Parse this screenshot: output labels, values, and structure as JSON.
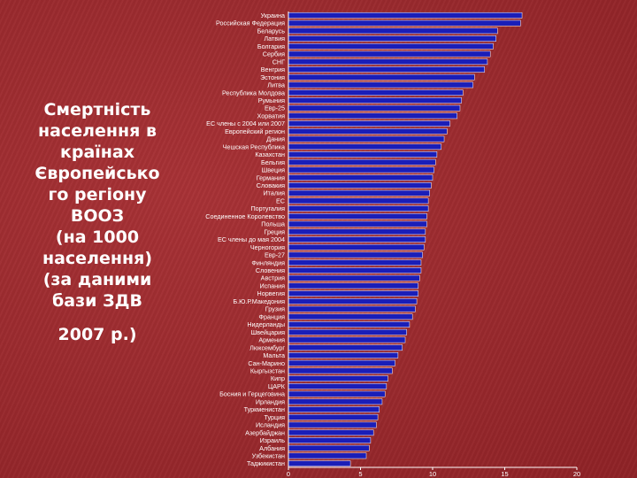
{
  "slide": {
    "title_lines": [
      "Смертність",
      "населення в",
      "країнах",
      "Європейсько",
      "го регіону",
      "ВООЗ",
      "(на 1000",
      "населення)",
      "(за даними",
      "бази ЗДВ"
    ],
    "year": "2007 р.)"
  },
  "chart_data": {
    "type": "bar",
    "orientation": "horizontal",
    "title": "",
    "xlabel": "",
    "ylabel": "",
    "xlim": [
      0,
      20
    ],
    "xticks": [
      "0",
      "5",
      "10",
      "15",
      "20"
    ],
    "bar_color": "#1a1eb8",
    "categories": [
      "Украина",
      "Российская Федерация",
      "Беларусь",
      "Латвия",
      "Болгария",
      "Сербия",
      "СНГ",
      "Венгрия",
      "Эстония",
      "Литва",
      "Республика Молдова",
      "Румыния",
      "Евр-25",
      "Хорватия",
      "ЕС члены с 2004 или 2007",
      "Европейский регион",
      "Дания",
      "Чешская Республика",
      "Казахстан",
      "Бельгия",
      "Швеция",
      "Германия",
      "Словакия",
      "Италия",
      "ЕС",
      "Португалия",
      "Соединенное Королевство",
      "Польша",
      "Греция",
      "ЕС члены до мая 2004",
      "Черногория",
      "Евр-27",
      "Финляндия",
      "Словения",
      "Австрия",
      "Испания",
      "Норвегия",
      "Б.Ю.Р.Македония",
      "Грузия",
      "Франция",
      "Нидерланды",
      "Швейцария",
      "Армения",
      "Люксембург",
      "Мальта",
      "Сан-Марино",
      "Кыргызстан",
      "Кипр",
      "ЦАРК",
      "Босния и Герцеговина",
      "Ирландия",
      "Туркменистан",
      "Турция",
      "Исландия",
      "Азербайджан",
      "Израиль",
      "Албания",
      "Узбекистан",
      "Таджикистан"
    ],
    "values": [
      16.2,
      16.1,
      14.5,
      14.4,
      14.2,
      14.0,
      13.8,
      13.6,
      12.9,
      12.8,
      12.1,
      12.0,
      11.9,
      11.7,
      11.2,
      11.0,
      10.8,
      10.6,
      10.3,
      10.2,
      10.1,
      10.0,
      9.9,
      9.8,
      9.7,
      9.7,
      9.6,
      9.6,
      9.5,
      9.5,
      9.4,
      9.3,
      9.2,
      9.2,
      9.1,
      9.0,
      9.0,
      8.9,
      8.8,
      8.6,
      8.4,
      8.2,
      8.1,
      7.9,
      7.6,
      7.4,
      7.2,
      6.9,
      6.8,
      6.7,
      6.5,
      6.3,
      6.2,
      6.1,
      5.9,
      5.7,
      5.6,
      5.4,
      4.3
    ]
  }
}
